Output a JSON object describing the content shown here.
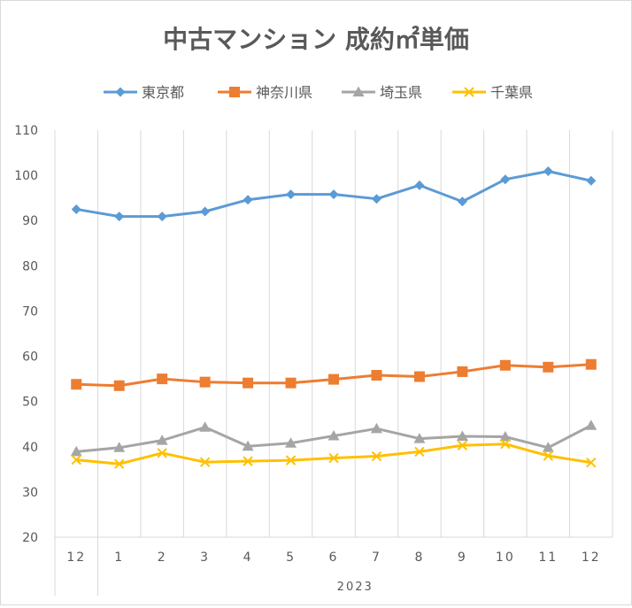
{
  "chart_data": {
    "type": "line",
    "title": "中古マンション 成約㎡単価",
    "categories": [
      "12",
      "1",
      "2",
      "3",
      "4",
      "5",
      "6",
      "7",
      "8",
      "9",
      "10",
      "11",
      "12"
    ],
    "group_labels": [
      {
        "label": "",
        "start": 0,
        "end": 0
      },
      {
        "label": "2023",
        "start": 1,
        "end": 12
      }
    ],
    "ylim": [
      20,
      110
    ],
    "yticks": [
      20,
      30,
      40,
      50,
      60,
      70,
      80,
      90,
      100,
      110
    ],
    "grid": "vertical",
    "legend_position": "top",
    "series": [
      {
        "name": "東京都",
        "color": "#5B9BD5",
        "marker": "diamond",
        "values": [
          92.5,
          90.9,
          90.9,
          92.0,
          94.6,
          95.8,
          95.8,
          94.8,
          97.8,
          94.2,
          99.1,
          100.9,
          98.8
        ]
      },
      {
        "name": "神奈川県",
        "color": "#ED7D31",
        "marker": "square",
        "values": [
          53.8,
          53.5,
          55.0,
          54.3,
          54.1,
          54.1,
          54.9,
          55.8,
          55.5,
          56.6,
          58.0,
          57.6,
          58.2
        ]
      },
      {
        "name": "埼玉県",
        "color": "#A5A5A5",
        "marker": "triangle",
        "values": [
          38.9,
          39.8,
          41.4,
          44.3,
          40.1,
          40.8,
          42.4,
          44.0,
          41.8,
          42.3,
          42.2,
          39.8,
          44.7
        ]
      },
      {
        "name": "千葉県",
        "color": "#FFC000",
        "marker": "x",
        "values": [
          37.1,
          36.2,
          38.6,
          36.6,
          36.8,
          37.0,
          37.5,
          37.9,
          38.9,
          40.3,
          40.6,
          38.0,
          36.5
        ]
      }
    ]
  }
}
